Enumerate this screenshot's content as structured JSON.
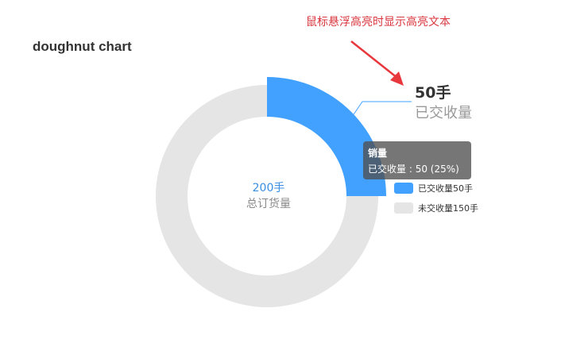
{
  "title": "doughnut chart",
  "annotation_note": "鼠标悬浮高亮时显示高亮文本",
  "colors": {
    "sold": "#42a1ff",
    "unsold": "#e5e5e5",
    "arrow": "#e8383d",
    "leader": "#42a1ff"
  },
  "center": {
    "value": "200手",
    "label": "总订货量"
  },
  "highlight": {
    "value": "50手",
    "label": "已交收量"
  },
  "tooltip": {
    "title": "销量",
    "series_label": "已交收量",
    "separator": " : ",
    "value": "50",
    "percent": "(25%)"
  },
  "legend": {
    "items": [
      {
        "label": "已交收量50手",
        "color": "#42a1ff"
      },
      {
        "label": "未交收量150手",
        "color": "#e5e5e5"
      }
    ]
  },
  "chart_data": {
    "type": "pie",
    "variant": "doughnut",
    "title": "doughnut chart",
    "series_name": "销量",
    "slices": [
      {
        "name": "已交收量",
        "value": 50,
        "percent": 25
      },
      {
        "name": "未交收量",
        "value": 150,
        "percent": 75
      }
    ],
    "total": 200,
    "highlighted_slice": "已交收量",
    "legend_position": "right"
  }
}
